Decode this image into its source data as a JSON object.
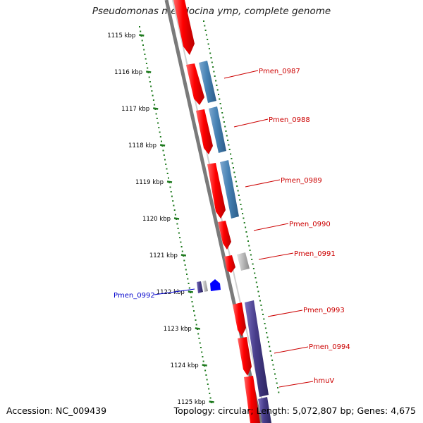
{
  "title": "Pseudomonas mendocina ymp, complete genome",
  "accession": "Accession: NC_009439",
  "summary": "Topology: circular; Length: 5,072,807 bp; Genes: 4,675",
  "colors": {
    "forward_gene": "#ff0000",
    "reverse_gene": "#4682b4",
    "other_gene": "#b0b0b0",
    "dark_gene": "#483d8b",
    "blue_gene": "#0000ff",
    "label_red": "#cc0000",
    "label_blue": "#0000cc",
    "ruler": "#1e7a1e",
    "backbone": "#808080"
  },
  "ticks": [
    "1115 kbp",
    "1116 kbp",
    "1117 kbp",
    "1118 kbp",
    "1119 kbp",
    "1120 kbp",
    "1121 kbp",
    "1122 kbp",
    "1123 kbp",
    "1124 kbp",
    "1125 kbp"
  ],
  "gene_labels": [
    {
      "name": "Pmen_0987",
      "color": "red"
    },
    {
      "name": "Pmen_0988",
      "color": "red"
    },
    {
      "name": "Pmen_0989",
      "color": "red"
    },
    {
      "name": "Pmen_0990",
      "color": "red"
    },
    {
      "name": "Pmen_0991",
      "color": "red"
    },
    {
      "name": "Pmen_0992",
      "color": "blue"
    },
    {
      "name": "Pmen_0993",
      "color": "red"
    },
    {
      "name": "Pmen_0994",
      "color": "red"
    },
    {
      "name": "hmuV",
      "color": "red"
    }
  ]
}
